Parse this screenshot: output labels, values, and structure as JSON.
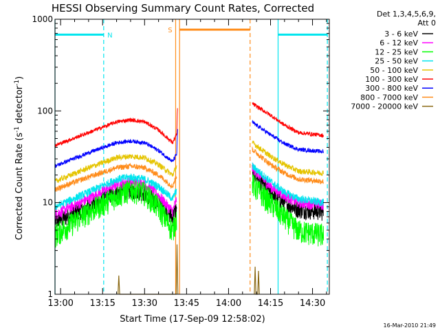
{
  "chart_data": {
    "type": "line",
    "title": "HESSI Observing Summary Count Rates, Corrected",
    "xlabel": "Start Time (17-Sep-09 12:58:02)",
    "ylabel": "Corrected Count Rate (s",
    "ylabel_sup1": "-1",
    "ylabel_mid": " detector",
    "ylabel_sup2": "-1",
    "ylabel_end": ")",
    "yscale": "log",
    "ylim": [
      1,
      1000
    ],
    "xlim_minutes": [
      778,
      876
    ],
    "x_ticks": [
      "13:00",
      "13:15",
      "13:30",
      "13:45",
      "14:00",
      "14:15",
      "14:30"
    ],
    "x_tick_minutes": [
      780,
      795,
      810,
      825,
      840,
      855,
      870
    ],
    "y_ticks": [
      "1",
      "10",
      "100",
      "1000"
    ],
    "y_tick_values": [
      1,
      10,
      100,
      1000
    ],
    "legend_header": [
      "Det 1,3,4,5,6,9,",
      "Att 0"
    ],
    "legend_placement": "right",
    "footer_timestamp": "16-Mar-2010 21:49",
    "flags": [
      {
        "label": "N",
        "color": "#00e5ee",
        "segments": [
          [
            778,
            795.4
          ],
          [
            857.7,
            875.3
          ]
        ],
        "level": 680,
        "markers_dashed": [
          795.4,
          875.3
        ],
        "markers_solid": [
          778,
          857.7
        ]
      },
      {
        "label": "S",
        "color": "#ff8c1a",
        "segments": [
          [
            822.5,
            847.7
          ]
        ],
        "level": 770,
        "markers_dashed": [
          847.7
        ],
        "markers_solid": [
          821.1,
          822.5
        ]
      }
    ],
    "series": [
      {
        "name": "3 - 6 keV",
        "color": "#000000",
        "seg1": [
          [
            778,
            6.2
          ],
          [
            790,
            9
          ],
          [
            800,
            13
          ],
          [
            805,
            14
          ],
          [
            810,
            13
          ],
          [
            815,
            10
          ],
          [
            820,
            7
          ],
          [
            821.5,
            9
          ]
        ],
        "seg2": [
          [
            848.5,
            22
          ],
          [
            855,
            13
          ],
          [
            860,
            10
          ],
          [
            865,
            8.5
          ],
          [
            874,
            8
          ]
        ]
      },
      {
        "name": "6 - 12 keV",
        "color": "#ff00ff",
        "seg1": [
          [
            778,
            7.5
          ],
          [
            790,
            11
          ],
          [
            800,
            16
          ],
          [
            805,
            17
          ],
          [
            810,
            16
          ],
          [
            815,
            12
          ],
          [
            820,
            8
          ],
          [
            821.5,
            11
          ]
        ],
        "seg2": [
          [
            848.5,
            24
          ],
          [
            855,
            15
          ],
          [
            860,
            12
          ],
          [
            865,
            10
          ],
          [
            874,
            9.5
          ]
        ]
      },
      {
        "name": "12 - 25 keV",
        "color": "#00ff00",
        "seg1": [
          [
            778,
            4.5
          ],
          [
            790,
            8
          ],
          [
            800,
            12
          ],
          [
            805,
            14
          ],
          [
            810,
            13
          ],
          [
            815,
            9
          ],
          [
            820,
            5
          ],
          [
            821.5,
            7
          ]
        ],
        "seg2": [
          [
            848.5,
            16
          ],
          [
            855,
            10
          ],
          [
            860,
            7
          ],
          [
            865,
            5
          ],
          [
            874,
            4.5
          ]
        ]
      },
      {
        "name": "25 - 50 keV",
        "color": "#00e5ee",
        "seg1": [
          [
            778,
            9
          ],
          [
            790,
            13
          ],
          [
            800,
            18
          ],
          [
            805,
            19
          ],
          [
            810,
            18
          ],
          [
            815,
            15
          ],
          [
            820,
            11
          ],
          [
            821.5,
            14
          ]
        ],
        "seg2": [
          [
            848.5,
            25
          ],
          [
            855,
            17
          ],
          [
            860,
            13
          ],
          [
            865,
            11
          ],
          [
            874,
            10
          ]
        ]
      },
      {
        "name": "50 - 100 keV",
        "color": "#e5c400",
        "seg1": [
          [
            778,
            17
          ],
          [
            790,
            24
          ],
          [
            800,
            31
          ],
          [
            805,
            32
          ],
          [
            810,
            31
          ],
          [
            815,
            26
          ],
          [
            820,
            20
          ],
          [
            821.5,
            25
          ]
        ],
        "seg2": [
          [
            848.5,
            45
          ],
          [
            855,
            32
          ],
          [
            860,
            26
          ],
          [
            865,
            22
          ],
          [
            874,
            21
          ]
        ]
      },
      {
        "name": "100 - 300 keV",
        "color": "#ff0000",
        "seg1": [
          [
            778,
            42
          ],
          [
            790,
            58
          ],
          [
            800,
            76
          ],
          [
            805,
            80
          ],
          [
            810,
            76
          ],
          [
            815,
            62
          ],
          [
            820,
            45
          ],
          [
            821.5,
            55
          ],
          [
            821.8,
            125
          ]
        ],
        "seg2": [
          [
            848.5,
            120
          ],
          [
            855,
            90
          ],
          [
            860,
            70
          ],
          [
            865,
            58
          ],
          [
            874,
            54
          ]
        ]
      },
      {
        "name": "300 - 800 keV",
        "color": "#0000ff",
        "seg1": [
          [
            778,
            25
          ],
          [
            790,
            35
          ],
          [
            800,
            45
          ],
          [
            805,
            47
          ],
          [
            810,
            45
          ],
          [
            815,
            37
          ],
          [
            820,
            28
          ],
          [
            821.5,
            34
          ],
          [
            821.8,
            70
          ]
        ],
        "seg2": [
          [
            848.5,
            75
          ],
          [
            855,
            55
          ],
          [
            860,
            44
          ],
          [
            865,
            38
          ],
          [
            874,
            36
          ]
        ]
      },
      {
        "name": "800 - 7000 keV",
        "color": "#ff8c1a",
        "seg1": [
          [
            778,
            14
          ],
          [
            790,
            19
          ],
          [
            800,
            24
          ],
          [
            805,
            25
          ],
          [
            810,
            24
          ],
          [
            815,
            20
          ],
          [
            820,
            15
          ],
          [
            821.5,
            20
          ]
        ],
        "seg2": [
          [
            848.5,
            38
          ],
          [
            855,
            26
          ],
          [
            860,
            21
          ],
          [
            865,
            18
          ],
          [
            874,
            17
          ]
        ]
      },
      {
        "name": "7000 - 20000 keV",
        "color": "#8b6914",
        "seg1": [
          [
            800.5,
            1
          ],
          [
            800.8,
            1.6
          ],
          [
            801.1,
            1
          ],
          [
            821.3,
            1
          ],
          [
            821.6,
            3.5
          ],
          [
            821.9,
            1
          ]
        ],
        "seg2": [
          [
            849.2,
            1
          ],
          [
            849.5,
            2.0
          ],
          [
            849.8,
            1
          ],
          [
            850.4,
            1
          ],
          [
            850.7,
            1.8
          ],
          [
            851,
            1
          ]
        ]
      }
    ]
  }
}
